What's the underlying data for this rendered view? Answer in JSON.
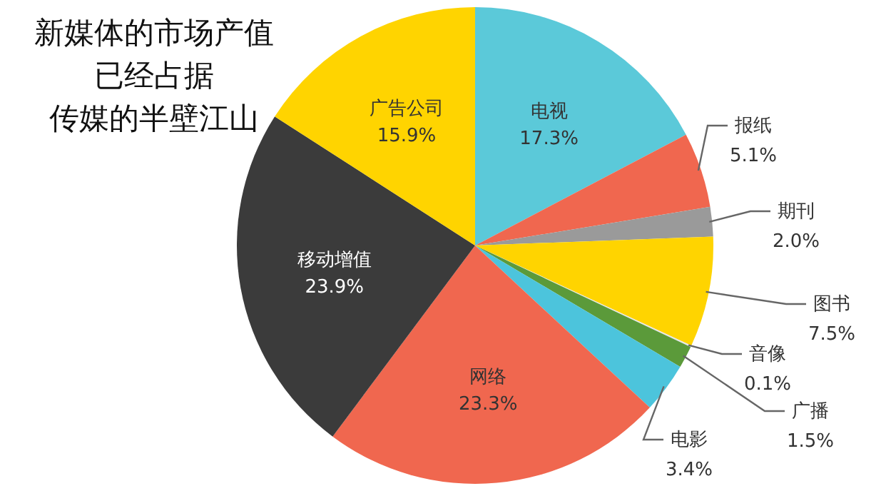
{
  "chart_data": {
    "type": "pie",
    "title": "新媒体的市场产值已经占据传媒的半壁江山",
    "categories": [
      "电视",
      "报纸",
      "期刊",
      "图书",
      "音像",
      "广播",
      "电影",
      "网络",
      "移动增值",
      "广告公司"
    ],
    "values": [
      17.3,
      5.1,
      2.0,
      7.5,
      0.1,
      1.5,
      3.4,
      23.3,
      23.9,
      15.9
    ],
    "colors": [
      "#5bc9d9",
      "#f0674f",
      "#9a9a9a",
      "#ffd400",
      "#e6e6e6",
      "#5b9a3a",
      "#4cc4dc",
      "#f0674f",
      "#3b3b3b",
      "#ffd400"
    ],
    "value_labels": [
      "17.3%",
      "5.1%",
      "2.0%",
      "7.5%",
      "0.1%",
      "1.5%",
      "3.4%",
      "23.3%",
      "23.9%",
      "15.9%"
    ],
    "legend": false
  }
}
